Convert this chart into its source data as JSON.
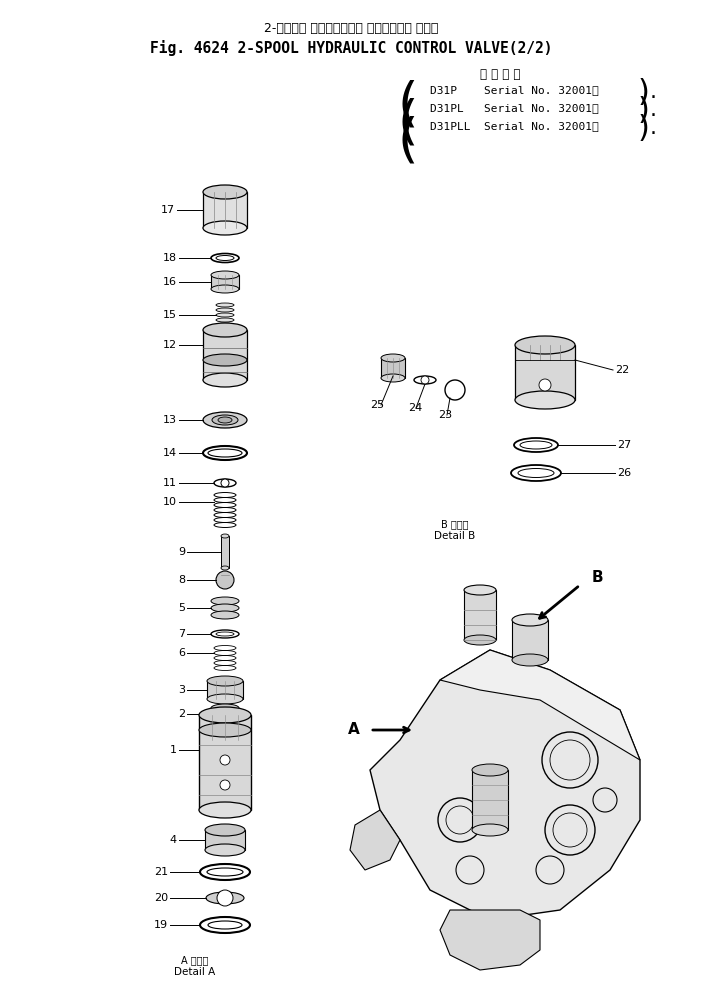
{
  "title_jp": "2-スプール ハイドロリック コントロール バルブ",
  "title_en": "Fig. 4624 2-SPOOL HYDRAULIC CONTROL VALVE(2/2)",
  "serial_header": "適 用 号 機",
  "serial_lines": [
    "D31P    Serial No. 32001～",
    "D31PL   Serial No. 32001～",
    "D31PLL  Serial No. 32001～"
  ],
  "detail_a_label": "A 詳細図\nDetail A",
  "detail_b_label": "B 詳細図\nDetail B",
  "bg_color": "#ffffff",
  "text_color": "#000000",
  "figsize": [
    7.03,
    10.06
  ],
  "dpi": 100
}
